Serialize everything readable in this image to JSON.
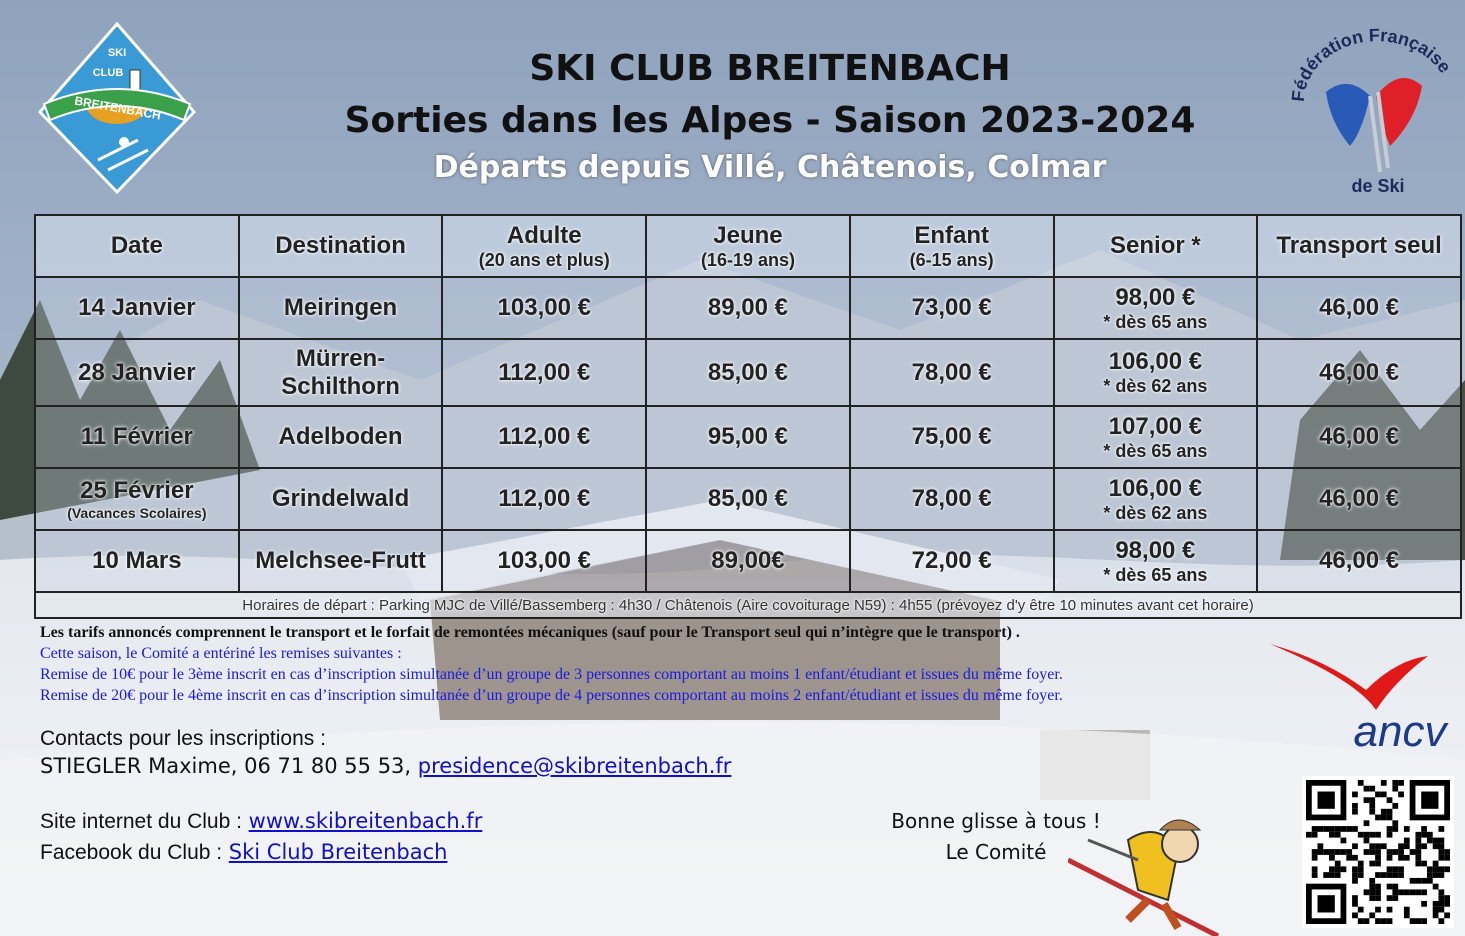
{
  "header": {
    "title": "SKI CLUB BREITENBACH",
    "subtitle": "Sorties dans les Alpes - Saison 2023-2024",
    "departures": "Départs depuis Villé, Châtenois, Colmar"
  },
  "logos": {
    "club": [
      "SKI",
      "CLUB",
      "BREITENBACH"
    ],
    "federation_top": "Fédération Française",
    "federation_bottom": "de Ski",
    "ancv": "ancv"
  },
  "table": {
    "columns": [
      "Date",
      "Destination",
      {
        "text": "Adulte",
        "note": "(20 ans et plus)"
      },
      {
        "text": "Jeune",
        "note": "(16-19 ans)"
      },
      {
        "text": "Enfant",
        "note": "(6-15 ans)"
      },
      "Senior *",
      "Transport seul"
    ],
    "rows": [
      [
        "14 Janvier",
        "Meiringen",
        "103,00 €",
        "89,00 €",
        "73,00 €",
        {
          "text": "98,00 €",
          "note": "* dès 65 ans"
        },
        "46,00 €"
      ],
      [
        "28 Janvier",
        "Mürren-Schilthorn",
        "112,00 €",
        "85,00 €",
        "78,00 €",
        {
          "text": "106,00 €",
          "note": "* dès 62 ans"
        },
        "46,00 €"
      ],
      [
        "11 Février",
        "Adelboden",
        "112,00 €",
        "95,00 €",
        "75,00 €",
        {
          "text": "107,00 €",
          "note": "* dès 65 ans"
        },
        "46,00 €"
      ],
      [
        {
          "text": "25 Février",
          "note": "(Vacances Scolaires)"
        },
        "Grindelwald",
        "112,00 €",
        "85,00 €",
        "78,00 €",
        {
          "text": "106,00 €",
          "note": "* dès 62 ans"
        },
        "46,00 €"
      ],
      [
        "10 Mars",
        "Melchsee-Frutt",
        "103,00 €",
        "89,00€",
        "72,00 €",
        {
          "text": "98,00 €",
          "note": "* dès 65 ans"
        },
        "46,00 €"
      ]
    ],
    "footnote": "Horaires de départ : Parking MJC de Villé/Bassemberg : 4h30 / Châtenois (Aire covoiturage N59) : 4h55 (prévoyez d'y être 10 minutes avant cet horaire)"
  },
  "notes": {
    "main": "Les tarifs annoncés comprennent le transport et le forfait de remontées mécaniques (sauf pour le Transport seul qui n’intègre que le transport) .",
    "lines": [
      "Cette saison, le Comité a entériné les remises suivantes :",
      "Remise de 10€ pour le 3ème inscrit en cas d’inscription simultanée d’un groupe de 3 personnes comportant au moins 1 enfant/étudiant et issues du même foyer.",
      "Remise de 20€ pour le 4ème inscrit en cas d’inscription simultanée d’un groupe de 4 personnes comportant au moins 2 enfant/étudiant et issues du même foyer."
    ]
  },
  "contacts": {
    "heading": "Contacts pour les inscriptions :",
    "person": "STIEGLER Maxime, 06 71 80 55 53,",
    "email": "presidence@skibreitenbach.fr"
  },
  "site": {
    "label": "Site internet du Club :",
    "link": "www.skibreitenbach.fr"
  },
  "facebook": {
    "label": "Facebook du Club :",
    "link": "Ski Club Breitenbach"
  },
  "closing": {
    "line1": "Bonne glisse à tous !",
    "line2": "Le Comité"
  }
}
